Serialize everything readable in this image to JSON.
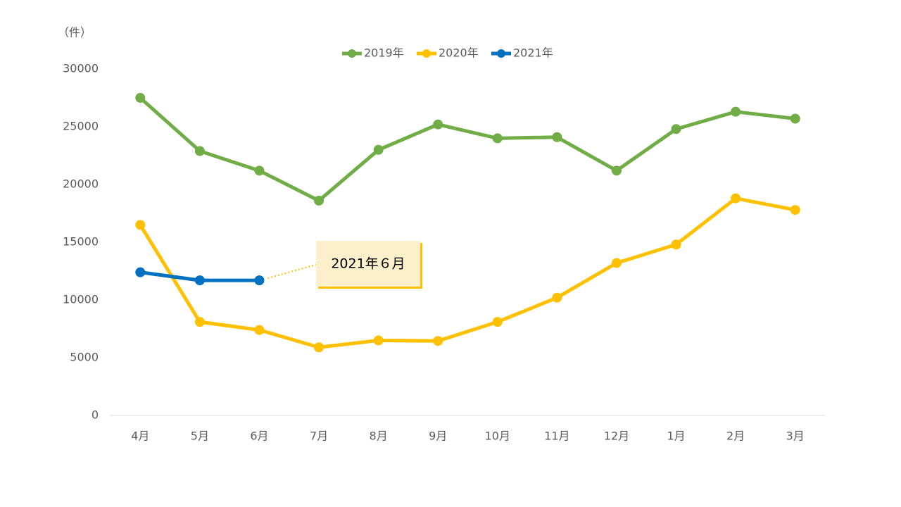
{
  "chart_data": {
    "type": "line",
    "y_axis_label": "（件）",
    "annotation": "2021年６月",
    "categories": [
      "4月",
      "5月",
      "6月",
      "7月",
      "8月",
      "9月",
      "10月",
      "11月",
      "12月",
      "1月",
      "2月",
      "3月"
    ],
    "series": [
      {
        "name": "2019年",
        "color": "#70ad47",
        "values": [
          27500,
          22900,
          21200,
          18600,
          23000,
          25200,
          24000,
          24100,
          21200,
          24800,
          26300,
          25700
        ]
      },
      {
        "name": "2020年",
        "color": "#ffc000",
        "values": [
          16500,
          8100,
          7400,
          5900,
          6500,
          6450,
          8100,
          10200,
          13200,
          14800,
          18800,
          17800
        ]
      },
      {
        "name": "2021年",
        "color": "#0070c0",
        "values": [
          12400,
          11700,
          11700,
          null,
          null,
          null,
          null,
          null,
          null,
          null,
          null,
          null
        ]
      }
    ],
    "ylim": [
      0,
      30000
    ],
    "yticks": [
      0,
      5000,
      10000,
      15000,
      20000,
      25000,
      30000
    ],
    "grid": false,
    "legend": "top"
  }
}
